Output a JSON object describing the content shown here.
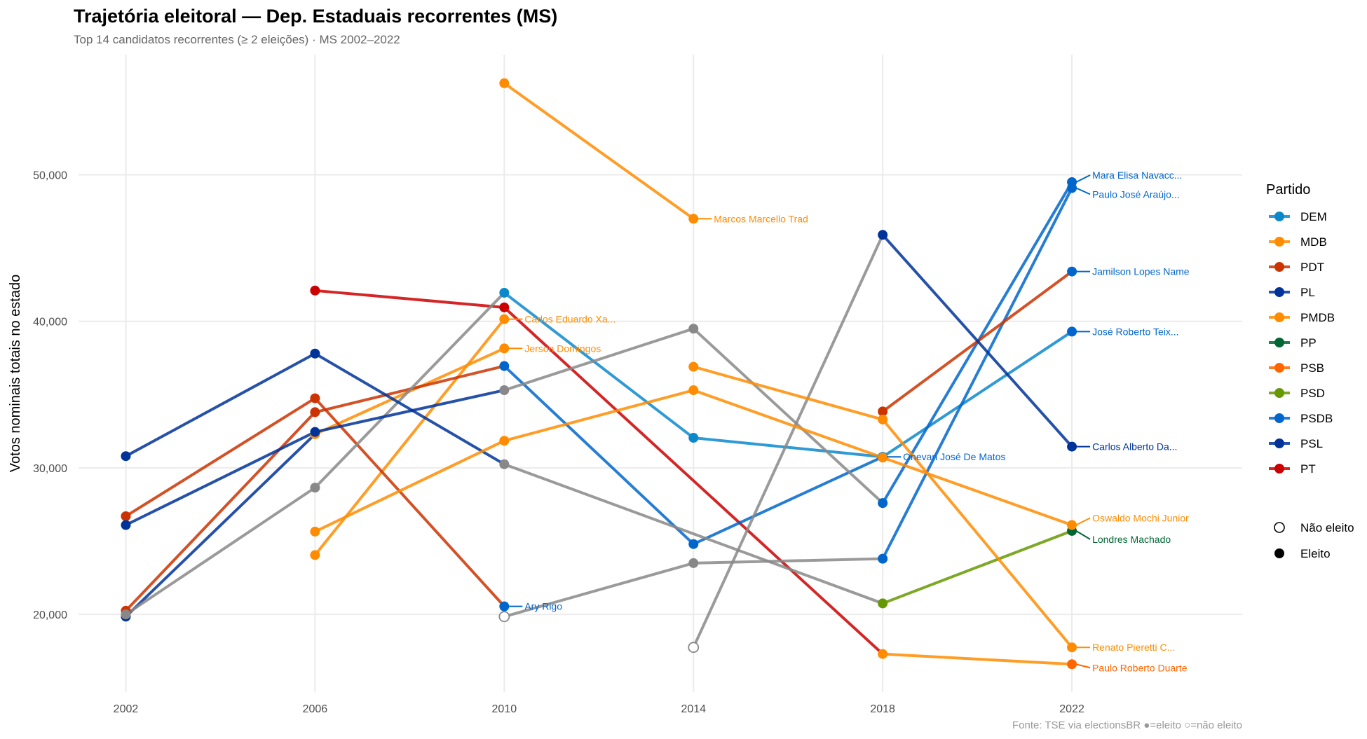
{
  "chart_data": {
    "type": "line",
    "title": "Trajetória eleitoral — Dep. Estaduais recorrentes (MS)",
    "subtitle": "Top 14 candidatos recorrentes (≥ 2 eleições) · MS 2002–2022",
    "ylabel": "Votos nominais totais no estado",
    "xlabel": "",
    "caption": "Fonte: TSE via electionsBR  ●=eleito  ○=não eleito",
    "x_ticks": [
      2002,
      2006,
      2010,
      2014,
      2018,
      2022
    ],
    "y_ticks": [
      20000,
      30000,
      40000,
      50000
    ],
    "y_tick_labels": [
      "20,000",
      "30,000",
      "40,000",
      "50,000"
    ],
    "xlim": [
      2001,
      2025.6
    ],
    "ylim": [
      14700,
      58200
    ],
    "grid": true,
    "legend": {
      "title": "Partido",
      "placement": "right",
      "parties": [
        {
          "name": "DEM",
          "color": "#0B88CC"
        },
        {
          "name": "MDB",
          "color": "#FF8C00"
        },
        {
          "name": "PDT",
          "color": "#CC3300"
        },
        {
          "name": "PL",
          "color": "#003399"
        },
        {
          "name": "PMDB",
          "color": "#FF8C00"
        },
        {
          "name": "PP",
          "color": "#006633"
        },
        {
          "name": "PSB",
          "color": "#FF6600"
        },
        {
          "name": "PSD",
          "color": "#669900"
        },
        {
          "name": "PSDB",
          "color": "#0066CC"
        },
        {
          "name": "PSL",
          "color": "#003399"
        },
        {
          "name": "PT",
          "color": "#CC0000"
        }
      ],
      "status": [
        {
          "label": "Não eleito",
          "elected": false
        },
        {
          "label": "Eleito",
          "elected": true
        }
      ]
    },
    "other_party_color": "#888888",
    "series": [
      {
        "name": "Paulo Roberto Duarte",
        "points": [
          {
            "year": 2006,
            "votes": 42100,
            "party": "PT",
            "elected": true
          },
          {
            "year": 2010,
            "votes": 40950,
            "party": "PT",
            "elected": true
          },
          {
            "year": 2018,
            "votes": 17300,
            "party": "MDB",
            "elected": true
          },
          {
            "year": 2022,
            "votes": 16600,
            "party": "PSB",
            "elected": true
          }
        ]
      },
      {
        "name": "Marcos Marcello Trad",
        "points": [
          {
            "year": 2010,
            "votes": 56250,
            "party": "PMDB",
            "elected": true
          },
          {
            "year": 2014,
            "votes": 47000,
            "party": "PMDB",
            "elected": true
          }
        ]
      },
      {
        "name": "Carlos Eduardo Xa...",
        "points": [
          {
            "year": 2006,
            "votes": 24050,
            "party": "PMDB",
            "elected": true
          },
          {
            "year": 2010,
            "votes": 40150,
            "party": "PMDB",
            "elected": true
          }
        ]
      },
      {
        "name": "Jerson Domingos",
        "points": [
          {
            "year": 2002,
            "votes": 19850,
            "party": "PL",
            "elected": true
          },
          {
            "year": 2006,
            "votes": 32300,
            "party": "PMDB",
            "elected": true
          },
          {
            "year": 2010,
            "votes": 38150,
            "party": "PMDB",
            "elected": true
          }
        ]
      },
      {
        "name": "Ary Rigo",
        "points": [
          {
            "year": 2002,
            "votes": 26700,
            "party": "PDT",
            "elected": true
          },
          {
            "year": 2006,
            "votes": 34750,
            "party": "PDT",
            "elected": true
          },
          {
            "year": 2010,
            "votes": 20550,
            "party": "PSDB",
            "elected": true
          }
        ]
      },
      {
        "name": "Onevan José De Matos",
        "points": [
          {
            "year": 2002,
            "votes": 20250,
            "party": "PDT",
            "elected": true
          },
          {
            "year": 2006,
            "votes": 33800,
            "party": "PDT",
            "elected": true
          },
          {
            "year": 2010,
            "votes": 36950,
            "party": "PSDB",
            "elected": true
          },
          {
            "year": 2014,
            "votes": 24800,
            "party": "PSDB",
            "elected": true
          },
          {
            "year": 2018,
            "votes": 30750,
            "party": "PSDB",
            "elected": true
          }
        ]
      },
      {
        "name": "José Roberto Teix...",
        "points": [
          {
            "year": 2002,
            "votes": 20000,
            "party": "Outro",
            "elected": true
          },
          {
            "year": 2006,
            "votes": 28650,
            "party": "Outro",
            "elected": true
          },
          {
            "year": 2010,
            "votes": 41950,
            "party": "DEM",
            "elected": true
          },
          {
            "year": 2014,
            "votes": 32050,
            "party": "DEM",
            "elected": true
          },
          {
            "year": 2018,
            "votes": 30750,
            "party": "DEM",
            "elected": true
          },
          {
            "year": 2022,
            "votes": 39300,
            "party": "PSDB",
            "elected": true
          }
        ]
      },
      {
        "name": "Londres Machado",
        "points": [
          {
            "year": 2002,
            "votes": 30800,
            "party": "PL",
            "elected": true
          },
          {
            "year": 2006,
            "votes": 37800,
            "party": "PL",
            "elected": true
          },
          {
            "year": 2010,
            "votes": 30250,
            "party": "Outro",
            "elected": true
          },
          {
            "year": 2018,
            "votes": 20750,
            "party": "PSD",
            "elected": true
          },
          {
            "year": 2022,
            "votes": 25700,
            "party": "PP",
            "elected": true
          }
        ]
      },
      {
        "name": "Mara Elisa Navacc...",
        "points": [
          {
            "year": 2002,
            "votes": 26100,
            "party": "PL",
            "elected": true
          },
          {
            "year": 2006,
            "votes": 32450,
            "party": "PL",
            "elected": true
          },
          {
            "year": 2010,
            "votes": 35300,
            "party": "Outro",
            "elected": true
          },
          {
            "year": 2014,
            "votes": 39500,
            "party": "Outro",
            "elected": true
          },
          {
            "year": 2018,
            "votes": 27600,
            "party": "PSDB",
            "elected": true
          },
          {
            "year": 2022,
            "votes": 49500,
            "party": "PSDB",
            "elected": true
          }
        ]
      },
      {
        "name": "Paulo José Araújo...",
        "points": [
          {
            "year": 2010,
            "votes": 19850,
            "party": "Outro",
            "elected": false
          },
          {
            "year": 2014,
            "votes": 23500,
            "party": "Outro",
            "elected": true
          },
          {
            "year": 2018,
            "votes": 23800,
            "party": "PSDB",
            "elected": true
          },
          {
            "year": 2022,
            "votes": 49100,
            "party": "PSDB",
            "elected": true
          }
        ]
      },
      {
        "name": "Jamilson Lopes Name",
        "points": [
          {
            "year": 2018,
            "votes": 33850,
            "party": "PDT",
            "elected": true
          },
          {
            "year": 2022,
            "votes": 43400,
            "party": "PSDB",
            "elected": true
          }
        ]
      },
      {
        "name": "Carlos Alberto Da...",
        "points": [
          {
            "year": 2014,
            "votes": 17750,
            "party": "Outro",
            "elected": false
          },
          {
            "year": 2018,
            "votes": 45900,
            "party": "PSL",
            "elected": true
          },
          {
            "year": 2022,
            "votes": 31450,
            "party": "PL",
            "elected": true
          }
        ]
      },
      {
        "name": "Oswaldo Mochi Junior",
        "points": [
          {
            "year": 2006,
            "votes": 25650,
            "party": "PMDB",
            "elected": true
          },
          {
            "year": 2010,
            "votes": 31850,
            "party": "PMDB",
            "elected": true
          },
          {
            "year": 2014,
            "votes": 35300,
            "party": "PMDB",
            "elected": true
          },
          {
            "year": 2018,
            "votes": 30700,
            "party": "MDB",
            "elected": true
          },
          {
            "year": 2022,
            "votes": 26100,
            "party": "MDB",
            "elected": true
          }
        ]
      },
      {
        "name": "Renato Pieretti C...",
        "points": [
          {
            "year": 2014,
            "votes": 36900,
            "party": "PMDB",
            "elected": true
          },
          {
            "year": 2018,
            "votes": 33300,
            "party": "MDB",
            "elected": true
          },
          {
            "year": 2022,
            "votes": 17750,
            "party": "MDB",
            "elected": true
          }
        ]
      }
    ]
  }
}
